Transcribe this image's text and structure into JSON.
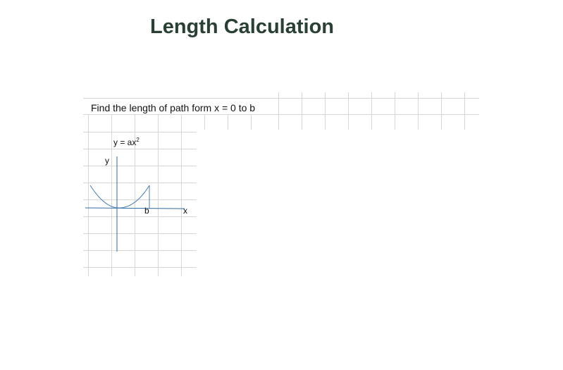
{
  "page": {
    "title": "Length Calculation"
  },
  "problem": {
    "text": "Find the length of path form x = 0 to b"
  },
  "diagram": {
    "equation_prefix": "y = ax",
    "equation_exponent": "2",
    "y_axis_label": "y",
    "x_axis_label": "x",
    "b_label": "b",
    "curve_color": "#4a7fb5",
    "axis_color": "#2f6aa3",
    "grid_color": "#d6d6d6"
  }
}
